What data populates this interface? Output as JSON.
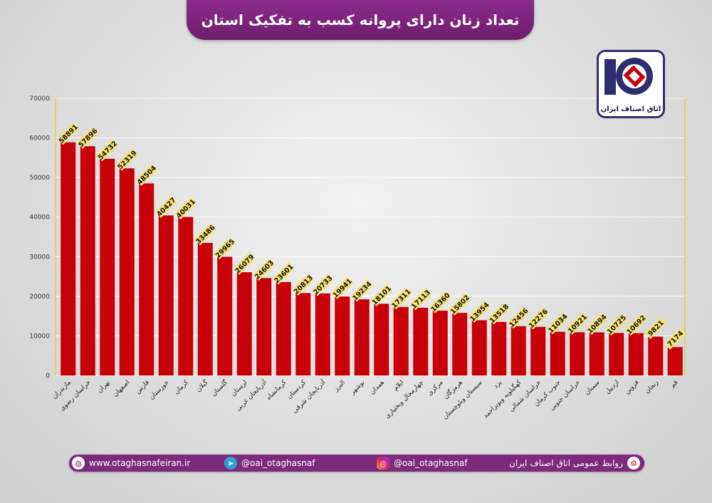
{
  "header": {
    "title": "تعداد زنان دارای پروانه کسب به تفکیک استان"
  },
  "logo": {
    "text": "اتاق اصناف ایران"
  },
  "footer": {
    "website": "www.otaghasnafeiran.ir",
    "telegram": "@oai_otaghasnaf",
    "instagram": "@oai_otaghasnaf",
    "relations": "روابط عمومی اتاق اصناف ایران"
  },
  "colors": {
    "bar": "#c8000a",
    "label_bg": "#f3e27a",
    "accent": "#7b2a7c",
    "frame": "#e8c400"
  },
  "chart_data": {
    "type": "bar",
    "title": "تعداد زنان دارای پروانه کسب به تفکیک استان",
    "xlabel": "",
    "ylabel": "",
    "ylim": [
      0,
      70000
    ],
    "yticks": [
      0,
      10000,
      20000,
      30000,
      40000,
      50000,
      60000,
      70000
    ],
    "categories": [
      "مازندران",
      "خراسان رضوی",
      "تهران",
      "اصفهان",
      "فارس",
      "خوزستان",
      "کرمان",
      "گیلان",
      "گلستان",
      "لرستان",
      "آذربایجان غربی",
      "کرمانشاه",
      "کردستان",
      "آذربایجان شرقی",
      "البرز",
      "بوشهر",
      "همدان",
      "ایلام",
      "چهارمحال وبختیاری",
      "مرکزی",
      "هرمزگان",
      "سیستان وبلوچستان",
      "یزد",
      "کهگیلویه وبویراحمد",
      "خراسان شمالی",
      "جنوب کرمان",
      "خراسان جنوبی",
      "سمنان",
      "اردبیل",
      "قزوین",
      "زنجان",
      "قم"
    ],
    "values": [
      58891,
      57896,
      54732,
      52319,
      48504,
      40427,
      40031,
      33486,
      29965,
      26079,
      24603,
      23601,
      20813,
      20733,
      19941,
      19234,
      18101,
      17311,
      17113,
      16360,
      15802,
      13954,
      13518,
      12456,
      12276,
      11034,
      10921,
      10894,
      10725,
      10692,
      9821,
      7174
    ]
  }
}
